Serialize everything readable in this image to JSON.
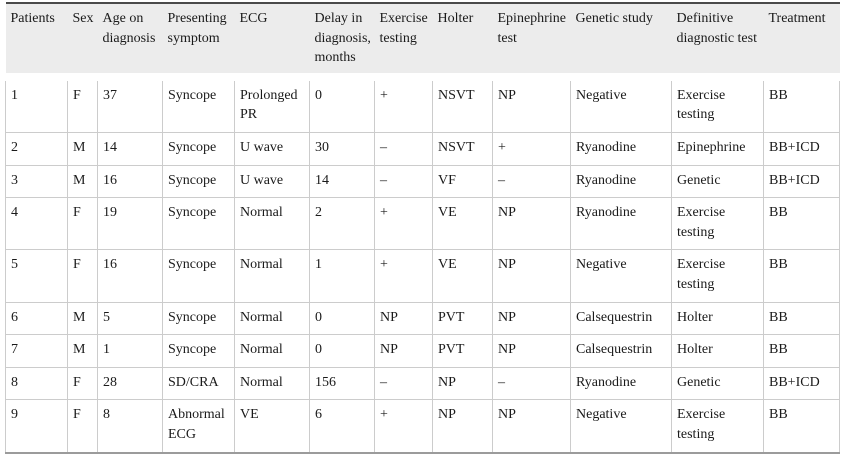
{
  "table": {
    "columns": [
      "Patients",
      "Sex",
      "Age on diagnosis",
      "Presenting symptom",
      "ECG",
      "Delay in diagnosis, months",
      "Exercise testing",
      "Holter",
      "Epinephrine test",
      "Genetic study",
      "Definitive diagnostic test",
      "Treatment"
    ],
    "rows": [
      [
        "1",
        "F",
        "37",
        "Syncope",
        "Prolonged PR",
        "0",
        "+",
        "NSVT",
        "NP",
        "Negative",
        "Exercise testing",
        "BB"
      ],
      [
        "2",
        "M",
        "14",
        "Syncope",
        "U wave",
        "30",
        "–",
        "NSVT",
        "+",
        "Ryanodine",
        "Epinephrine",
        "BB+ICD"
      ],
      [
        "3",
        "M",
        "16",
        "Syncope",
        "U wave",
        "14",
        "–",
        "VF",
        "–",
        "Ryanodine",
        "Genetic",
        "BB+ICD"
      ],
      [
        "4",
        "F",
        "19",
        "Syncope",
        "Normal",
        "2",
        "+",
        "VE",
        "NP",
        "Ryanodine",
        "Exercise testing",
        "BB"
      ],
      [
        "5",
        "F",
        "16",
        "Syncope",
        "Normal",
        "1",
        "+",
        "VE",
        "NP",
        "Negative",
        "Exercise testing",
        "BB"
      ],
      [
        "6",
        "M",
        "5",
        "Syncope",
        "Normal",
        "0",
        "NP",
        "PVT",
        "NP",
        "Calsequestrin",
        "Holter",
        "BB"
      ],
      [
        "7",
        "M",
        "1",
        "Syncope",
        "Normal",
        "0",
        "NP",
        "PVT",
        "NP",
        "Calsequestrin",
        "Holter",
        "BB"
      ],
      [
        "8",
        "F",
        "28",
        "SD/CRA",
        "Normal",
        "156",
        "–",
        "NP",
        "–",
        "Ryanodine",
        "Genetic",
        "BB+ICD"
      ],
      [
        "9",
        "F",
        "8",
        "Abnormal ECG",
        "VE",
        "6",
        "+",
        "NP",
        "NP",
        "Negative",
        "Exercise testing",
        "BB"
      ]
    ],
    "colors": {
      "header_bg": "#ececec",
      "grid_line": "#cccccc",
      "top_rule": "#4a4a4a",
      "bottom_rule": "#9b9b9b",
      "text": "#1a1a1a"
    }
  }
}
